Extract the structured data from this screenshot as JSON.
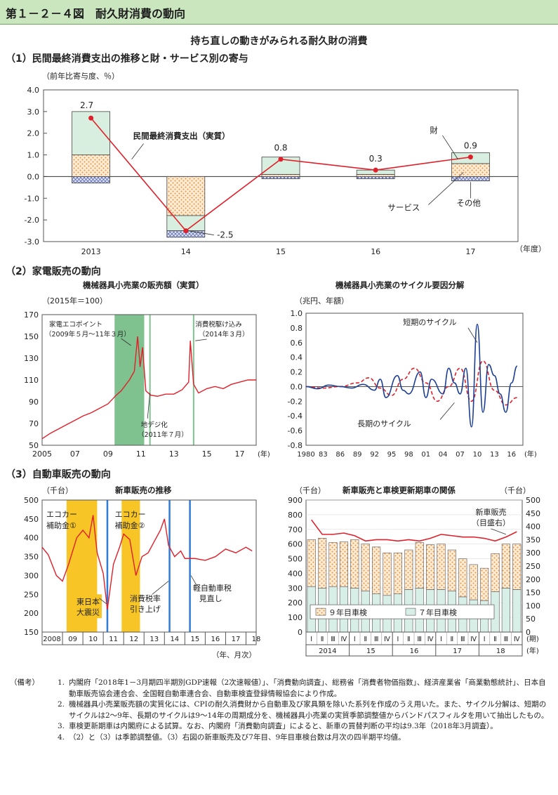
{
  "header": {
    "title": "第１－２－４図　耐久財消費の動向"
  },
  "subtitle": "持ち直しの動きがみられる耐久財の消費",
  "sec1": {
    "title": "（1）民間最終消費支出の推移と財・サービス別の寄与",
    "unit": "（前年比寄与度、％）",
    "xunit": "（年度）"
  },
  "sec2": {
    "title": "（2）家電販売の動向",
    "left_title": "機械器具小売業の販売額（実質）",
    "left_unit": "（2015年＝100）",
    "right_title": "機械器具小売業のサイクル要因分解",
    "right_unit": "（兆円、年額）",
    "left_xunit": "(年)",
    "right_xunit": "(年)"
  },
  "sec3": {
    "title": "（3）自動車販売の動向",
    "left_title": "新車販売の推移",
    "left_unit": "（千台）",
    "left_xunit": "（年、月次）",
    "right_title": "新車販売と車検更新期車の関係",
    "right_unit_l": "（千台）",
    "right_unit_r": "（千台）",
    "right_xunit": "(期)",
    "right_yunit": "(年)"
  },
  "colors": {
    "header_bg": "#c9e6bf",
    "line_red": "#e0202a",
    "green_band": "#7fc28f",
    "yellow_band": "#f7c525",
    "blue": "#1c3f94",
    "orange_dots": "#f3b06e",
    "teal": "#d8efe8"
  },
  "chart_data": [
    {
      "id": "consumption",
      "type": "bar",
      "categories": [
        "2013",
        "14",
        "15",
        "16",
        "17"
      ],
      "ylim": [
        -3.0,
        4.0
      ],
      "yticks": [
        "4.0",
        "3.0",
        "2.0",
        "1.0",
        "0.0",
        "-1.0",
        "-2.0",
        "-3.0"
      ],
      "series": [
        {
          "name": "財",
          "values": [
            2.0,
            -0.7,
            0.8,
            0.2,
            0.5
          ]
        },
        {
          "name": "サービス",
          "values": [
            1.0,
            -1.8,
            0.1,
            0.1,
            0.6
          ]
        },
        {
          "name": "その他",
          "values": [
            -0.3,
            -0.3,
            -0.1,
            -0.1,
            -0.2
          ]
        }
      ],
      "line": {
        "name": "民間最終消費支出（実質）",
        "values": [
          2.7,
          -2.5,
          0.8,
          0.3,
          0.9
        ]
      },
      "value_labels": [
        "2.7",
        "-2.5",
        "0.8",
        "0.3",
        "0.9"
      ],
      "annotations": {
        "total": "民間最終消費支出（実質）",
        "goods": "財",
        "service": "サービス",
        "other": "その他"
      }
    },
    {
      "id": "appliance_sales",
      "type": "line",
      "ylim": [
        50,
        170
      ],
      "yticks": [
        "170",
        "150",
        "130",
        "110",
        "90",
        "70",
        "50"
      ],
      "xticks": [
        "2005",
        "07",
        "09",
        "11",
        "13",
        "15",
        "17"
      ],
      "x": [
        2005,
        2005.5,
        2006,
        2006.5,
        2007,
        2007.5,
        2008,
        2008.5,
        2009,
        2009.5,
        2009.8,
        2010,
        2010.3,
        2010.6,
        2010.8,
        2010.95,
        2011.1,
        2011.3,
        2011.6,
        2012,
        2012.5,
        2013,
        2013.5,
        2013.9,
        2014.0,
        2014.2,
        2014.5,
        2015,
        2015.5,
        2016,
        2016.5,
        2017,
        2017.5,
        2018
      ],
      "values": [
        56,
        61,
        65,
        69,
        73,
        77,
        80,
        84,
        88,
        96,
        100,
        104,
        110,
        118,
        150,
        122,
        140,
        100,
        96,
        95,
        97,
        97,
        101,
        108,
        146,
        106,
        98,
        102,
        104,
        102,
        106,
        108,
        110,
        110
      ],
      "annotations": {
        "eco": "家電エコポイント",
        "eco_period": "（2009年５月～11年３月）",
        "digital": "地デジ化",
        "digital_date": "（2011年７月）",
        "tax": "消費税駆け込み",
        "tax_date": "（2014年３月）"
      }
    },
    {
      "id": "cycle",
      "type": "line",
      "ylim": [
        -0.8,
        1.0
      ],
      "yticks": [
        "1.0",
        "0.8",
        "0.6",
        "0.4",
        "0.2",
        "0.0",
        "-0.2",
        "-0.4",
        "-0.6",
        "-0.8"
      ],
      "xticks": [
        "1980",
        "83",
        "86",
        "89",
        "92",
        "95",
        "98",
        "01",
        "04",
        "07",
        "10",
        "13",
        "16"
      ],
      "series": [
        {
          "name": "短期のサイクル",
          "x": [
            1980,
            1982,
            1984,
            1986,
            1988,
            1990,
            1992,
            1993,
            1994,
            1996,
            1997,
            1998,
            2000,
            2001,
            2002,
            2004,
            2005,
            2006,
            2007,
            2008,
            2009,
            2010,
            2011,
            2012,
            2013,
            2014,
            2015,
            2016,
            2017
          ],
          "values": [
            0,
            -0.03,
            0.02,
            0,
            -0.02,
            0.03,
            -0.05,
            0.1,
            -0.15,
            0.15,
            -0.05,
            -0.1,
            0.2,
            -0.15,
            0.1,
            -0.1,
            0.25,
            0.05,
            -0.1,
            0.25,
            -0.55,
            0.85,
            -0.35,
            0.3,
            0.15,
            -0.1,
            -0.35,
            0.05,
            0.28
          ]
        },
        {
          "name": "長期のサイクル",
          "x": [
            1980,
            1983,
            1986,
            1989,
            1991,
            1993,
            1995,
            1997,
            1999,
            2001,
            2003,
            2005,
            2007,
            2009,
            2011,
            2013,
            2015,
            2017
          ],
          "values": [
            0,
            -0.02,
            0,
            0.05,
            0.12,
            -0.02,
            -0.12,
            0.1,
            0.25,
            0.05,
            -0.2,
            0,
            0.25,
            -0.2,
            0.35,
            -0.05,
            -0.25,
            -0.15
          ]
        }
      ]
    },
    {
      "id": "car_sales",
      "type": "line",
      "ylim": [
        150,
        500
      ],
      "yticks": [
        "500",
        "450",
        "400",
        "350",
        "300",
        "250",
        "200",
        "150"
      ],
      "xticks": [
        "2008",
        "09",
        "10",
        "11",
        "12",
        "13",
        "14",
        "15",
        "16",
        "17",
        "18"
      ],
      "x": [
        2008,
        2008.3,
        2008.7,
        2009,
        2009.3,
        2009.7,
        2010,
        2010.3,
        2010.5,
        2010.7,
        2011,
        2011.2,
        2011.5,
        2011.8,
        2012,
        2012.3,
        2012.6,
        2012.9,
        2013.2,
        2013.5,
        2013.8,
        2014,
        2014.2,
        2014.5,
        2014.8,
        2015,
        2015.5,
        2016,
        2016.5,
        2017,
        2017.5,
        2018,
        2018.3
      ],
      "values": [
        375,
        355,
        300,
        285,
        330,
        400,
        420,
        400,
        460,
        360,
        305,
        210,
        330,
        375,
        410,
        395,
        300,
        350,
        360,
        390,
        420,
        450,
        380,
        350,
        365,
        345,
        345,
        340,
        350,
        370,
        360,
        375,
        365
      ],
      "annotations": {
        "eco1": "エコカー",
        "eco1b": "補助金①",
        "eco2": "エコカー",
        "eco2b": "補助金②",
        "quake": "東日本",
        "quake2": "大震災",
        "tax": "消費税率",
        "tax2": "引き上げ",
        "kei": "軽自動車税",
        "kei2": "見直し"
      }
    },
    {
      "id": "car_inspection",
      "type": "bar",
      "ylim_left": [
        0,
        900
      ],
      "ylim_right": [
        0,
        500
      ],
      "yticks_left": [
        "900",
        "800",
        "700",
        "600",
        "500",
        "400",
        "300",
        "200",
        "100",
        "0"
      ],
      "yticks_right": [
        "500",
        "450",
        "400",
        "350",
        "300",
        "250",
        "200",
        "150",
        "100",
        "50",
        "0"
      ],
      "categories": [
        "Ⅰ",
        "Ⅱ",
        "Ⅲ",
        "Ⅳ",
        "Ⅰ",
        "Ⅱ",
        "Ⅲ",
        "Ⅳ",
        "Ⅰ",
        "Ⅱ",
        "Ⅲ",
        "Ⅳ",
        "Ⅰ",
        "Ⅱ",
        "Ⅲ",
        "Ⅳ",
        "Ⅰ",
        "Ⅱ",
        "Ⅲ",
        "Ⅳ"
      ],
      "years": [
        "2014",
        "15",
        "16",
        "17",
        "18"
      ],
      "series": [
        {
          "name": "７年目車検",
          "values": [
            310,
            300,
            310,
            310,
            300,
            280,
            260,
            250,
            260,
            290,
            300,
            290,
            290,
            280,
            240,
            220,
            215,
            275,
            300,
            290
          ]
        },
        {
          "name": "９年目車検",
          "values": [
            320,
            340,
            300,
            305,
            330,
            320,
            320,
            290,
            280,
            270,
            310,
            305,
            310,
            280,
            260,
            240,
            220,
            260,
            300,
            310
          ]
        }
      ],
      "line": {
        "name": "新車販売",
        "unit": "（目盛右）",
        "values": [
          425,
          370,
          370,
          375,
          365,
          345,
          350,
          350,
          345,
          350,
          345,
          355,
          370,
          365,
          360,
          360,
          355,
          345,
          360,
          380
        ]
      },
      "legend": {
        "nine": "９年目車検",
        "seven": "７年目車検",
        "sales": "新車販売",
        "sales_unit": "（目盛右）"
      }
    }
  ],
  "notes": {
    "label": "（備考）",
    "items": [
      {
        "num": "1.",
        "text": "内閣府「2018年1－3月期四半期別GDP速報（2次速報値）」、「消費動向調査」、総務省「消費者物価指数」、経済産業省「商業動態統計」、日本自動車販売協会連合会、全国軽自動車連合会、自動車検査登録情報協会により作成。"
      },
      {
        "num": "2.",
        "text": "機械器具小売業販売額の実質化には、CPIの耐久消費財から自動車及び家具類を除いた系列を作成のうえ用いた。また、サイクル分解は、短期のサイクルは2～9年、長期のサイクルは9～14年の周期成分を、機械器具小売業の実質季節調整値からバンドパスフィルタを用いて抽出したもの。"
      },
      {
        "num": "3.",
        "text": "車検更新期車は内閣府による試算。なお、内閣府「消費動向調査」によると、新車の買替判断の平均は9.3年（2018年3月調査）。"
      },
      {
        "num": "4.",
        "text": "（2）と（3）は季節調整値。（3）右図の新車販売及び7年目、9年目車検台数は月次の四半期平均値。"
      }
    ]
  }
}
